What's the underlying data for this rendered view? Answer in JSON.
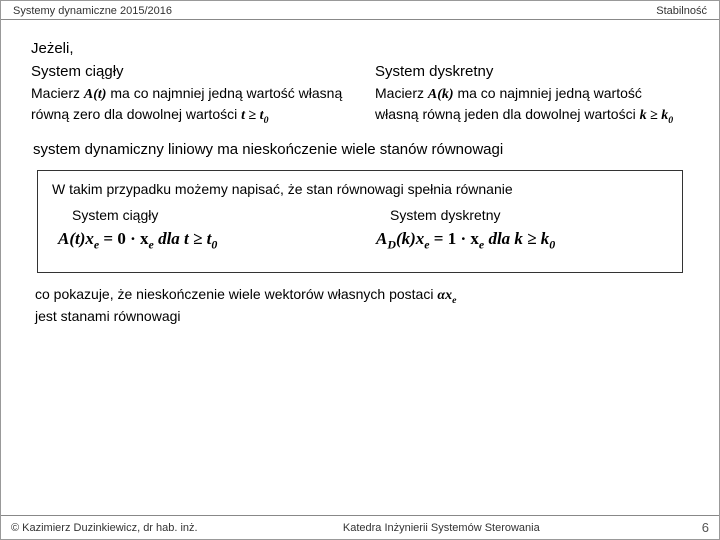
{
  "header": {
    "left": "Systemy dynamiczne 2015/2016",
    "right": "Stabilność"
  },
  "intro": "Jeżeli,",
  "columns": {
    "left": {
      "title": "System ciągły",
      "body_prefix": "Macierz ",
      "matrix": "A(t)",
      "body_mid": " ma co najmniej jedną wartość własną równą zero dla dowolnej wartości ",
      "tail": "t ≥ t",
      "tail_sub": "0"
    },
    "right": {
      "title": "System dyskretny",
      "body_prefix": "Macierz ",
      "matrix": "A(k)",
      "body_mid": " ma co najmniej jedną wartość własną równą jeden dla dowolnej wartości ",
      "tail": "k ≥ k",
      "tail_sub": "0"
    }
  },
  "statement": "system dynamiczny liniowy ma nieskończenie wiele stanów równowagi",
  "box": {
    "intro": "W takim przypadku możemy napisać, że stan równowagi  spełnia równanie",
    "left": {
      "title": "System ciągły",
      "eq_pre": "A(t)x",
      "eq_sub1": "e",
      "eq_mid": " = 0 · x",
      "eq_sub2": "e",
      "eq_post": "  dla t ≥ t",
      "eq_sub3": "0"
    },
    "right": {
      "title": "System dyskretny",
      "eq_pre": "A",
      "eq_subD": "D",
      "eq_k": "(k)x",
      "eq_sub1": "e",
      "eq_mid": " = 1 · x",
      "eq_sub2": "e",
      "eq_post": "  dla k ≥ k",
      "eq_sub3": "0"
    }
  },
  "closing": {
    "line1": "co pokazuje, że nieskończenie wiele wektorów własnych postaci ",
    "alpha": "αx",
    "alpha_sub": "e",
    "line2": "jest stanami równowagi"
  },
  "footer": {
    "left": "© Kazimierz Duzinkiewicz, dr hab. inż.",
    "center": "Katedra Inżynierii Systemów Sterowania",
    "page": "6"
  }
}
